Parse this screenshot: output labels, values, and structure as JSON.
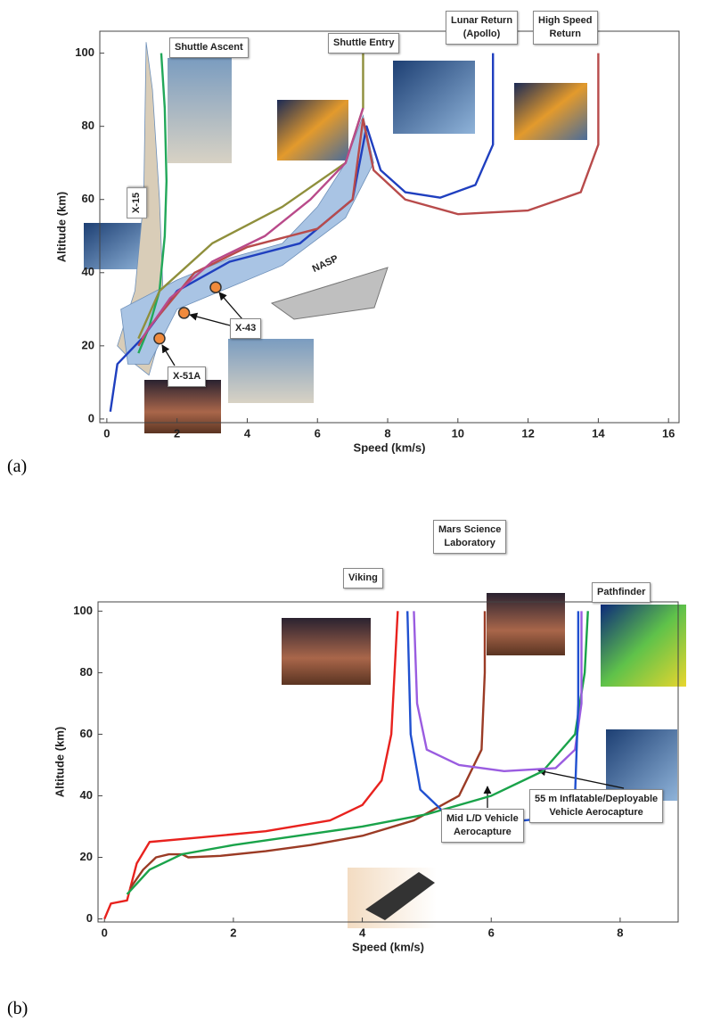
{
  "chart_data": [
    {
      "type": "line",
      "panel": "(a)",
      "x_label": "Speed (km/s)",
      "y_label": "Altitude (km)",
      "xlim": [
        -0.2,
        16.3
      ],
      "ylim": [
        -1,
        106
      ],
      "xticks": [
        0,
        2,
        4,
        6,
        8,
        10,
        12,
        14,
        16
      ],
      "yticks": [
        0,
        20,
        40,
        60,
        80,
        100
      ],
      "grid": false,
      "regions": [
        {
          "name": "X-15",
          "color": "#d9cdb8",
          "x": [
            0.3,
            0.8,
            1.05,
            1.12,
            1.3,
            1.5,
            1.6,
            1.5,
            1.2,
            0.8
          ],
          "values": [
            20,
            35,
            60,
            103,
            90,
            60,
            35,
            22,
            12,
            15
          ]
        },
        {
          "name": "NASP",
          "color": "#a9c4e4",
          "x": [
            0.4,
            2,
            3.5,
            5,
            6,
            6.8,
            7.3,
            7.6,
            6.8,
            5,
            3.5,
            2,
            1.2,
            0.6
          ],
          "values": [
            30,
            38,
            44,
            48,
            58,
            70,
            83,
            70,
            55,
            42,
            36,
            30,
            15,
            15
          ]
        }
      ],
      "series": [
        {
          "name": "Shuttle Ascent",
          "color": "#22a85a",
          "x": [
            0.9,
            1.2,
            1.5,
            1.65,
            1.7,
            1.65,
            1.55
          ],
          "values": [
            18,
            25,
            35,
            50,
            65,
            85,
            100
          ]
        },
        {
          "name": "Shuttle Entry",
          "color": "#8f8f3c",
          "x": [
            7.3,
            7.3,
            6.8,
            5,
            3,
            1.5,
            0.9
          ],
          "values": [
            100,
            85,
            70,
            58,
            48,
            35,
            22
          ]
        },
        {
          "name": "Lunar Return\n(Apollo)",
          "color": "#1f3fbf",
          "x": [
            11,
            11,
            10.5,
            9.5,
            8.5,
            7.8,
            7.4,
            7,
            5.5,
            3.5,
            2,
            1,
            0.3,
            0.1
          ],
          "values": [
            100,
            75,
            64,
            60.5,
            62,
            68,
            80,
            60,
            48,
            43,
            35,
            22,
            15,
            2
          ]
        },
        {
          "name": "High Speed\nReturn",
          "color": "#b84b4b",
          "x": [
            14,
            14,
            13.5,
            12,
            10,
            8.5,
            7.6,
            7.3,
            7,
            6,
            4,
            2.5,
            1.2,
            0.9
          ],
          "values": [
            100,
            75,
            62,
            57,
            56,
            60,
            68,
            82,
            60,
            52,
            47,
            40,
            25,
            20
          ]
        },
        {
          "color": "#b94a8a",
          "x": [
            7.3,
            6.8,
            5.8,
            4.5,
            3,
            1.8,
            1
          ],
          "values": [
            85,
            70,
            60,
            50,
            43,
            33,
            22
          ]
        }
      ],
      "markers": [
        {
          "name": "X-51A",
          "color": "#f08a3c",
          "x": [
            1.5
          ],
          "values": [
            22
          ]
        },
        {
          "name": "X-43",
          "color": "#f08a3c",
          "x": [
            2.2,
            3.1
          ],
          "values": [
            29,
            36
          ]
        }
      ]
    },
    {
      "type": "line",
      "panel": "(b)",
      "x_label": "Speed (km/s)",
      "y_label": "Altitude (km)",
      "xlim": [
        -0.1,
        8.9
      ],
      "ylim": [
        -1,
        103
      ],
      "xticks": [
        0,
        2,
        4,
        6,
        8
      ],
      "yticks": [
        0,
        20,
        40,
        60,
        80,
        100
      ],
      "grid": false,
      "series": [
        {
          "name": "Viking",
          "color": "#e8221e",
          "x": [
            0,
            0.1,
            0.35,
            0.5,
            0.7,
            1.5,
            2.5,
            3.5,
            4,
            4.3,
            4.45,
            4.5,
            4.55
          ],
          "values": [
            0,
            5,
            6,
            18,
            25,
            26.5,
            28.5,
            32,
            37,
            45,
            60,
            80,
            100
          ]
        },
        {
          "name": "Mars Science\nLaboratory",
          "color": "#9b3b25",
          "x": [
            5.9,
            5.9,
            5.85,
            5.5,
            4.8,
            4,
            3.2,
            2.5,
            1.8,
            1.3,
            1.2,
            1,
            0.8,
            0.6,
            0.4
          ],
          "values": [
            100,
            80,
            55,
            40,
            32,
            27,
            24,
            22,
            20.5,
            20,
            21,
            21,
            20,
            16,
            10
          ]
        },
        {
          "name": "Pathfinder",
          "color": "#1aa34a",
          "x": [
            7.5,
            7.45,
            7.3,
            6.8,
            6,
            5,
            4,
            3,
            2,
            1.2,
            0.7,
            0.35
          ],
          "values": [
            100,
            80,
            60,
            48,
            40,
            34,
            30,
            27,
            24,
            21,
            16,
            8
          ]
        },
        {
          "name": "55 m Inflatable/Deployable\nVehicle Aerocapture",
          "color": "#9a5ce0",
          "x": [
            4.8,
            4.85,
            5,
            5.5,
            6.2,
            7,
            7.3,
            7.4,
            7.4
          ],
          "values": [
            100,
            70,
            55,
            50,
            48,
            49,
            55,
            70,
            100
          ]
        },
        {
          "name": "Mid L/D Vehicle\nAerocapture",
          "color": "#2050d0",
          "x": [
            4.7,
            4.75,
            4.9,
            5.3,
            6,
            7,
            7.3,
            7.35,
            7.35
          ],
          "values": [
            100,
            60,
            42,
            34,
            31,
            33,
            40,
            70,
            100
          ]
        }
      ]
    }
  ]
}
